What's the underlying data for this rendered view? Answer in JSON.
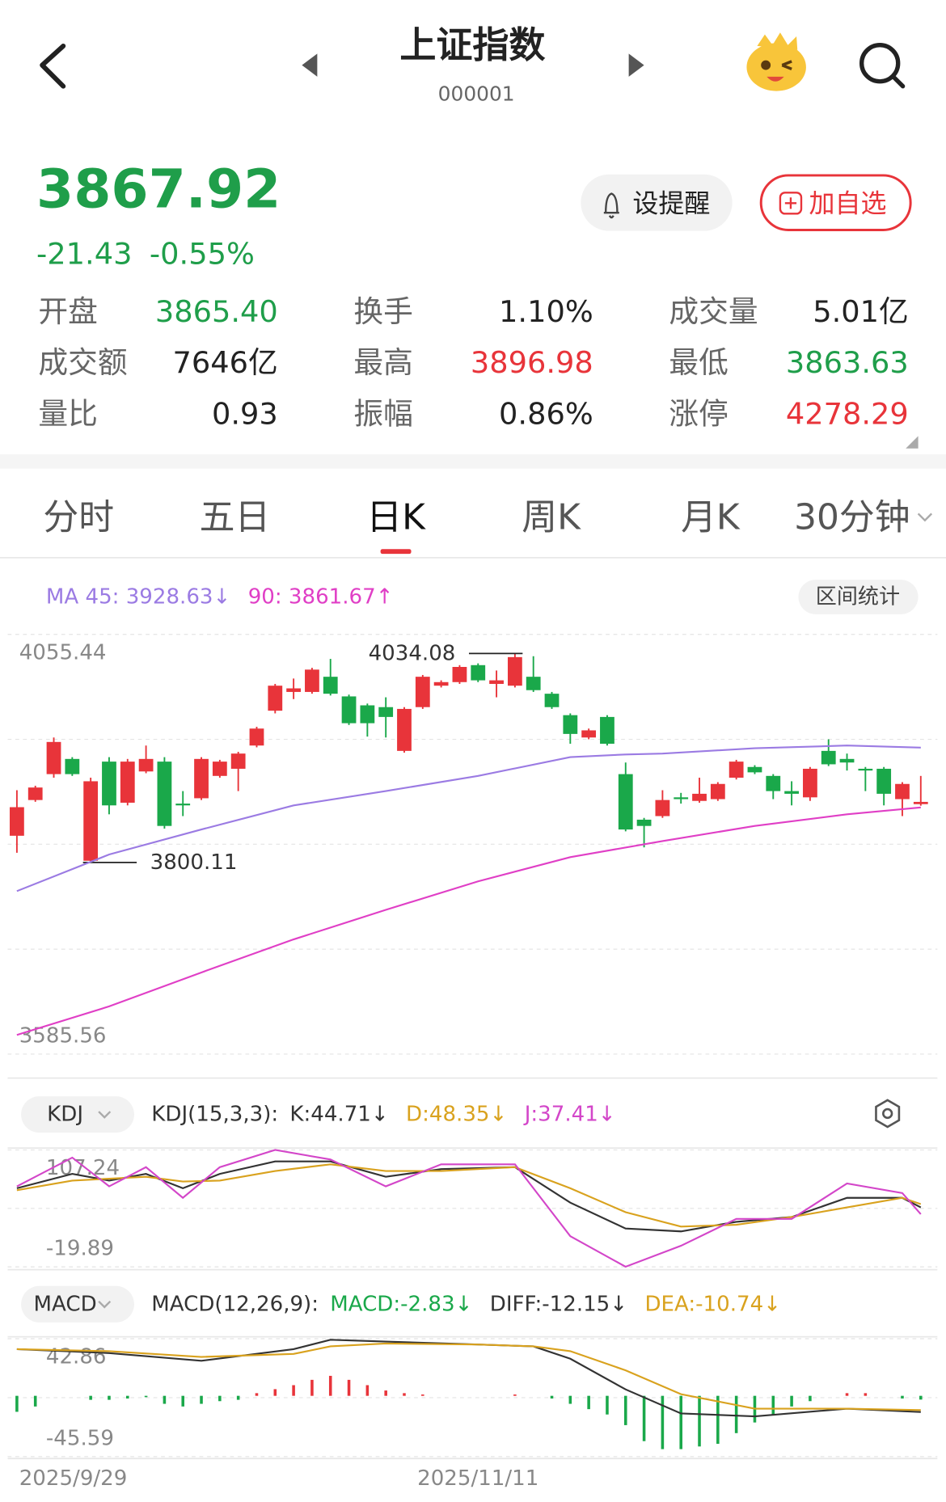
{
  "header": {
    "title": "上证指数",
    "code": "000001"
  },
  "quote": {
    "price": "3867.92",
    "change": "-21.43",
    "change_pct": "-0.55%",
    "alert_button": "设提醒",
    "watch_button": "加自选"
  },
  "stats": [
    {
      "label": "开盘",
      "value": "3865.40",
      "color": "#1f9e4a"
    },
    {
      "label": "换手",
      "value": "1.10%",
      "color": "#222222"
    },
    {
      "label": "成交量",
      "value": "5.01亿",
      "color": "#222222"
    },
    {
      "label": "成交额",
      "value": "7646亿",
      "color": "#222222"
    },
    {
      "label": "最高",
      "value": "3896.98",
      "color": "#e8343a"
    },
    {
      "label": "最低",
      "value": "3863.63",
      "color": "#1f9e4a"
    },
    {
      "label": "量比",
      "value": "0.93",
      "color": "#222222"
    },
    {
      "label": "振幅",
      "value": "0.86%",
      "color": "#222222"
    },
    {
      "label": "涨停",
      "value": "4278.29",
      "color": "#e8343a"
    }
  ],
  "tabs": {
    "items": [
      "分时",
      "五日",
      "日K",
      "周K",
      "月K",
      "30分钟"
    ],
    "active": 2
  },
  "range_stats_button": "区间统计",
  "chart_data": [
    {
      "type": "candlestick",
      "grid": true,
      "up_color": "#e8343a",
      "down_color": "#1aa84a",
      "xlim": [
        -0.5,
        49.9
      ],
      "ylim": [
        3585.56,
        4055.44
      ],
      "yticks": [
        4055.44,
        3585.56
      ],
      "open": [
        3830,
        3870,
        3899,
        3916,
        3802,
        3913,
        3867,
        3902,
        3913,
        3866,
        3872,
        3897,
        3905,
        3931,
        3970,
        3991,
        3991,
        4008,
        3986,
        3976,
        3974,
        3925,
        3974,
        3998,
        4002,
        4021,
        4000,
        3998,
        4008,
        3989,
        3965,
        3940,
        3963,
        3899,
        3848,
        3852,
        3873,
        3869,
        3871,
        3895,
        3907,
        3897,
        3880,
        3873,
        3925,
        3916,
        3905,
        3905,
        3871,
        3865.4
      ],
      "high": [
        3881,
        3886,
        3940,
        3918,
        3895,
        3918,
        3916,
        3931,
        3918,
        3880,
        3918,
        3915,
        3924,
        3952,
        4000,
        4006,
        4018,
        4028,
        3988,
        3978,
        3985,
        3974,
        4010,
        4004,
        4021,
        4023,
        4015,
        4034.08,
        4031,
        3991,
        3967,
        3950,
        3965,
        3912,
        3850,
        3881,
        3878,
        3895,
        3890,
        3915,
        3909,
        3899,
        3891,
        3907,
        3938,
        3922,
        3907,
        3907,
        3890,
        3896.98
      ],
      "low": [
        3811,
        3868,
        3895,
        3897,
        3800.11,
        3854,
        3864,
        3900,
        3838,
        3852,
        3870,
        3895,
        3880,
        3929,
        3967,
        3983,
        3989,
        3987,
        3954,
        3941,
        3940,
        3923,
        3972,
        3996,
        4000,
        4002,
        3985,
        3996,
        3991,
        3972,
        3933,
        3938,
        3931,
        3835,
        3817,
        3850,
        3866,
        3867,
        3869,
        3893,
        3899,
        3871,
        3864,
        3869,
        3908,
        3903,
        3880,
        3864,
        3852,
        3863.63
      ],
      "close": [
        3862,
        3884,
        3935,
        3899,
        3891,
        3864,
        3913,
        3916,
        3841,
        3864,
        3916,
        3913,
        3922,
        3950,
        3998,
        3995,
        4016,
        3989,
        3956,
        3956,
        3963,
        3972,
        4008,
        4002,
        4019,
        4004,
        4004,
        4030,
        3993,
        3974,
        3944,
        3948,
        3933,
        3837,
        3841,
        3870,
        3871,
        3877,
        3888,
        3913,
        3901,
        3880,
        3877,
        3905,
        3910,
        3912,
        3903,
        3877,
        3888,
        3867.92
      ],
      "series": [
        {
          "name": "MA 45: 3928.63↓",
          "color": "#9b7be3",
          "x": [
            0,
            5,
            10,
            15,
            20,
            25,
            30,
            33,
            35,
            40,
            45,
            49
          ],
          "values": [
            3768,
            3809,
            3837,
            3864,
            3880,
            3897,
            3918,
            3921,
            3922,
            3928,
            3931,
            3928.63
          ]
        },
        {
          "name": "90: 3861.67↑",
          "color": "#e03fc6",
          "x": [
            0,
            5,
            10,
            15,
            20,
            25,
            30,
            35,
            40,
            45,
            49
          ],
          "values": [
            3607,
            3639,
            3677,
            3714,
            3747,
            3779,
            3806,
            3824,
            3841,
            3854,
            3861.67
          ]
        }
      ],
      "annotations": [
        {
          "index": 27,
          "value": 4034.08
        },
        {
          "index": 4,
          "value": 3800.11
        }
      ]
    },
    {
      "type": "line",
      "indicator": "KDJ",
      "params": "KDJ(15,3,3):",
      "grid": true,
      "xlim": [
        -0.5,
        49.9
      ],
      "ylim": [
        -19.89,
        107.24
      ],
      "yticks": [
        107.24,
        -19.89
      ],
      "series": [
        {
          "name": "K:44.71↓",
          "color": "#333333",
          "x": [
            0,
            3,
            5,
            7,
            9,
            11,
            14,
            17,
            20,
            23,
            27,
            30,
            33,
            36,
            39,
            42,
            45,
            48,
            49
          ],
          "values": [
            65.6,
            81.2,
            73.9,
            81.2,
            65.6,
            81.2,
            94.7,
            94.7,
            78.1,
            86.4,
            88.5,
            49.9,
            21.8,
            18.7,
            29.1,
            34.3,
            55.1,
            55.1,
            44.71
          ]
        },
        {
          "name": "D:48.35↓",
          "color": "#d9a21e",
          "x": [
            0,
            3,
            5,
            7,
            9,
            11,
            14,
            17,
            20,
            23,
            27,
            30,
            33,
            36,
            39,
            42,
            45,
            48,
            49
          ],
          "values": [
            63.5,
            73.9,
            76,
            78.1,
            72.9,
            73.9,
            84.3,
            91.6,
            84.3,
            84.3,
            88.5,
            65.6,
            39.5,
            23.9,
            25.9,
            34.3,
            44.7,
            55.1,
            48.35
          ]
        },
        {
          "name": "J:37.41↓",
          "color": "#d346c9",
          "x": [
            0,
            3,
            5,
            7,
            9,
            11,
            14,
            17,
            20,
            23,
            27,
            30,
            33,
            36,
            39,
            42,
            45,
            48,
            49
          ],
          "values": [
            67.6,
            98.9,
            67.6,
            88.5,
            55.1,
            88.5,
            107.2,
            96.8,
            67.6,
            91.6,
            91.6,
            13.5,
            -19.8,
            3.0,
            32.2,
            32.2,
            70.8,
            60.3,
            37.41
          ]
        }
      ]
    },
    {
      "type": "combo",
      "indicator": "MACD",
      "params": "MACD(12,26,9):",
      "grid": true,
      "xlim": [
        -0.5,
        49.9
      ],
      "ylim": [
        -45.59,
        42.86
      ],
      "yticks": [
        42.86,
        -45.59
      ],
      "xticks": [
        {
          "value": 0,
          "label": "2025/9/29"
        },
        {
          "value": 25,
          "label": "2025/11/11"
        }
      ],
      "series": [
        {
          "name": "MACD:-2.83↓",
          "kind": "histogram",
          "color": "#1aa84a",
          "up_color": "#e8343a",
          "values": [
            -12,
            -8,
            0,
            0,
            -3,
            -3,
            -2,
            -1,
            -6,
            -8,
            -6,
            -4,
            -3,
            2,
            5,
            8,
            12,
            15,
            12,
            8,
            4,
            2,
            1,
            0,
            0,
            0,
            0,
            1,
            0,
            -2,
            -6,
            -10,
            -14,
            -22,
            -34,
            -40,
            -40,
            -38,
            -36,
            -28,
            -20,
            -14,
            -8,
            -4,
            0,
            2,
            2,
            0,
            -2,
            -2.83
          ]
        },
        {
          "name": "DIFF:-12.15↓",
          "color": "#333333",
          "x": [
            0,
            5,
            10,
            15,
            17,
            20,
            25,
            28,
            30,
            33,
            36,
            40,
            45,
            49
          ],
          "values": [
            35.0,
            32.1,
            26.3,
            35.0,
            42.1,
            40.7,
            38.5,
            37.1,
            27.8,
            4.8,
            -13.2,
            -15.4,
            -9.6,
            -12.15
          ]
        },
        {
          "name": "DEA:-10.74↓",
          "color": "#d9a21e",
          "x": [
            0,
            5,
            10,
            15,
            17,
            20,
            25,
            28,
            30,
            33,
            36,
            40,
            45,
            49
          ],
          "values": [
            35.0,
            33.5,
            29.2,
            31.4,
            37.1,
            39.3,
            38.5,
            37.1,
            33.5,
            19.1,
            1.2,
            -9.6,
            -9.6,
            -10.74
          ]
        }
      ]
    }
  ]
}
